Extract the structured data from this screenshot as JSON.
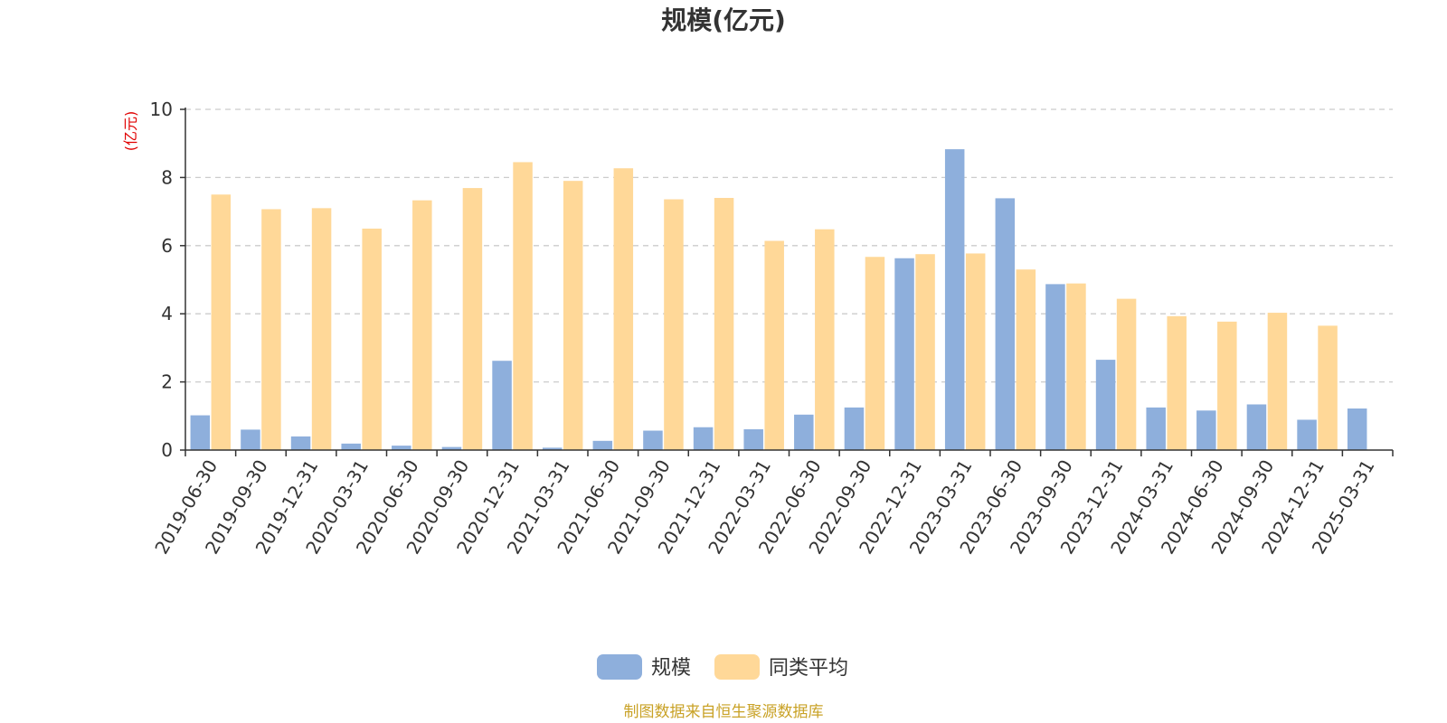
{
  "chart_data": {
    "type": "bar",
    "title": "规模(亿元)",
    "ylabel": "(亿元)",
    "xlabel": "",
    "ylim": [
      0,
      10
    ],
    "yticks": [
      0,
      2,
      4,
      6,
      8,
      10
    ],
    "grid": "horizontal dashed",
    "legend_position": "bottom-center",
    "categories": [
      "2019-06-30",
      "2019-09-30",
      "2019-12-31",
      "2020-03-31",
      "2020-06-30",
      "2020-09-30",
      "2020-12-31",
      "2021-03-31",
      "2021-06-30",
      "2021-09-30",
      "2021-12-31",
      "2022-03-31",
      "2022-06-30",
      "2022-09-30",
      "2022-12-31",
      "2023-03-31",
      "2023-06-30",
      "2023-09-30",
      "2023-12-31",
      "2024-03-31",
      "2024-06-30",
      "2024-09-30",
      "2024-12-31",
      "2025-03-31"
    ],
    "series": [
      {
        "name": "规模",
        "color": "#8eafdc",
        "values": [
          1.02,
          0.6,
          0.4,
          0.19,
          0.13,
          0.09,
          2.62,
          0.07,
          0.27,
          0.57,
          0.67,
          0.61,
          1.04,
          1.25,
          5.63,
          8.83,
          7.39,
          4.87,
          2.65,
          1.25,
          1.16,
          1.34,
          0.89,
          1.22
        ]
      },
      {
        "name": "同类平均",
        "color": "#ffd898",
        "values": [
          7.5,
          7.07,
          7.1,
          6.5,
          7.33,
          7.69,
          8.45,
          7.9,
          8.27,
          7.36,
          7.4,
          6.14,
          6.48,
          5.67,
          5.75,
          5.77,
          5.3,
          4.89,
          4.44,
          3.93,
          3.77,
          4.03,
          3.65,
          null
        ]
      }
    ],
    "source": "制图数据来自恒生聚源数据库"
  }
}
